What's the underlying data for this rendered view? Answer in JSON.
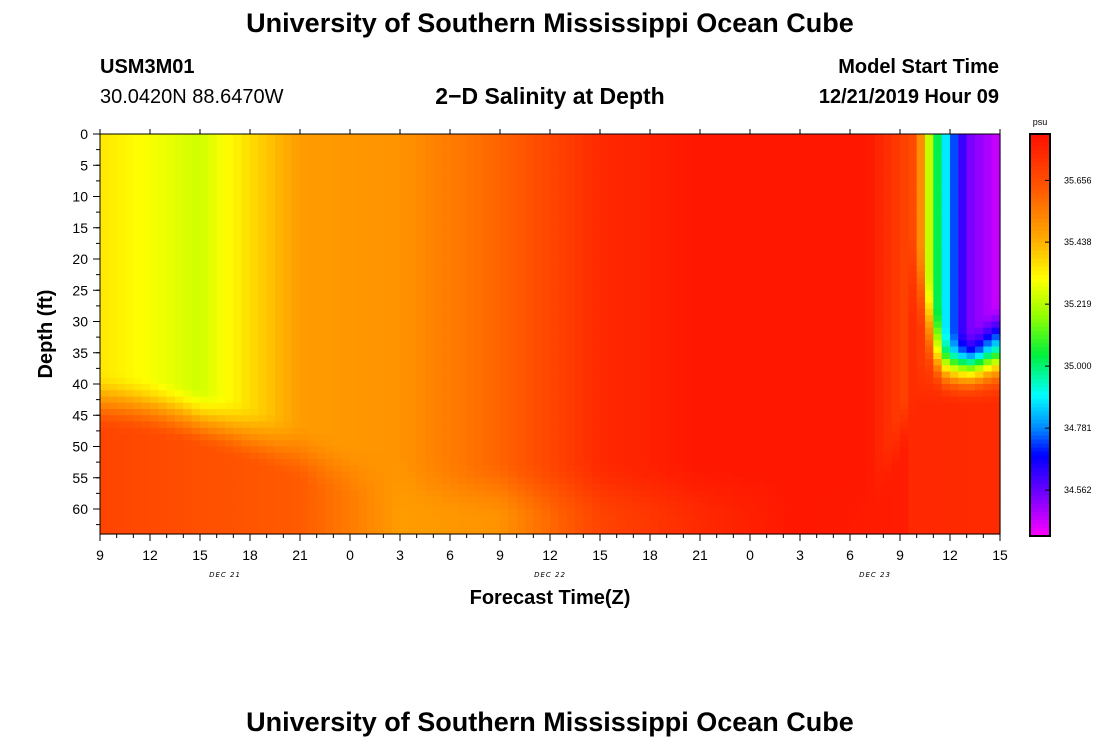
{
  "header": {
    "title": "University of Southern Mississippi Ocean Cube",
    "station_id": "USM3M01",
    "station_coords": "30.0420N 88.6470W",
    "plot_title": "2−D Salinity at Depth",
    "start_label": "Model Start Time",
    "start_value": "12/21/2019 Hour 09"
  },
  "footer": {
    "title": "University of Southern Mississippi Ocean Cube"
  },
  "chart_data": {
    "type": "heatmap",
    "title": "2−D Salinity at Depth",
    "xlabel": "Forecast Time(Z)",
    "ylabel": "Depth (ft)",
    "x_unit": "hours since 12/21/2019 09Z",
    "xlim": [
      0,
      54
    ],
    "x_ticks": [
      0,
      3,
      6,
      9,
      12,
      15,
      18,
      21,
      24,
      27,
      30,
      33,
      36,
      39,
      42,
      45,
      48,
      51,
      54
    ],
    "x_tick_labels": [
      "9",
      "12",
      "15",
      "18",
      "21",
      "0",
      "3",
      "6",
      "9",
      "12",
      "15",
      "18",
      "21",
      "0",
      "3",
      "6",
      "9",
      "12",
      "15"
    ],
    "date_labels": [
      {
        "x": 7.5,
        "label": "DEC 21"
      },
      {
        "x": 27,
        "label": "DEC 22"
      },
      {
        "x": 46.5,
        "label": "DEC 23"
      }
    ],
    "ylim": [
      0,
      64
    ],
    "y_inverted": true,
    "y_ticks": [
      0,
      5,
      10,
      15,
      20,
      25,
      30,
      35,
      40,
      45,
      50,
      55,
      60
    ],
    "colorbar": {
      "unit": "psu",
      "range": [
        34.4,
        35.82
      ],
      "ticks": [
        "35.656",
        "35.438",
        "35.219",
        "35.000",
        "34.781",
        "34.562"
      ]
    },
    "approx_surface_salinity_psu": {
      "x": [
        0,
        6,
        12,
        18,
        24,
        30,
        36,
        42,
        46,
        49,
        50,
        51,
        52,
        54
      ],
      "values": [
        35.35,
        35.25,
        35.48,
        35.5,
        35.6,
        35.75,
        35.8,
        35.8,
        35.8,
        35.65,
        35.1,
        34.8,
        34.55,
        34.45
      ]
    },
    "approx_bottom_salinity_psu_at_60ft": {
      "x": [
        0,
        12,
        18,
        24,
        30,
        36,
        42,
        50,
        54
      ],
      "values": [
        35.68,
        35.62,
        35.48,
        35.5,
        35.68,
        35.75,
        35.8,
        35.78,
        35.72
      ]
    }
  }
}
